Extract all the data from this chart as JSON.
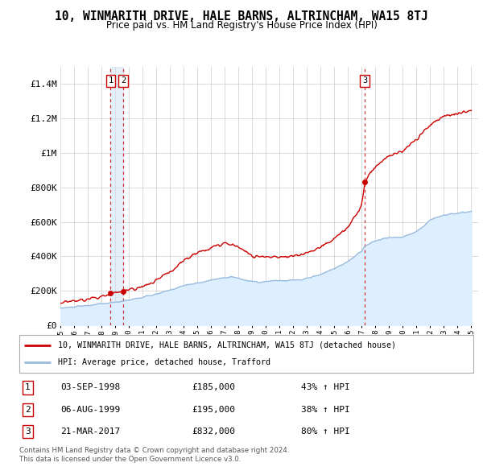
{
  "title": "10, WINMARITH DRIVE, HALE BARNS, ALTRINCHAM, WA15 8TJ",
  "subtitle": "Price paid vs. HM Land Registry's House Price Index (HPI)",
  "ylim": [
    0,
    1500000
  ],
  "yticks": [
    0,
    200000,
    400000,
    600000,
    800000,
    1000000,
    1200000,
    1400000
  ],
  "ytick_labels": [
    "£0",
    "£200K",
    "£400K",
    "£600K",
    "£800K",
    "£1M",
    "£1.2M",
    "£1.4M"
  ],
  "sale_color": "#cc0000",
  "hpi_color": "#99bbdd",
  "hpi_fill_color": "#ddeeff",
  "grid_color": "#cccccc",
  "bg_color": "#ffffff",
  "legend_label_sale": "10, WINMARITH DRIVE, HALE BARNS, ALTRINCHAM, WA15 8TJ (detached house)",
  "legend_label_hpi": "HPI: Average price, detached house, Trafford",
  "transactions": [
    {
      "num": 1,
      "date": "03-SEP-1998",
      "price": 185000,
      "pct": "43% ↑ HPI",
      "year": 1998.67
    },
    {
      "num": 2,
      "date": "06-AUG-1999",
      "price": 195000,
      "pct": "38% ↑ HPI",
      "year": 1999.58
    },
    {
      "num": 3,
      "date": "21-MAR-2017",
      "price": 832000,
      "pct": "80% ↑ HPI",
      "year": 2017.22
    }
  ],
  "footer": [
    "Contains HM Land Registry data © Crown copyright and database right 2024.",
    "This data is licensed under the Open Government Licence v3.0."
  ],
  "xmin": 1995,
  "xmax": 2025.5
}
